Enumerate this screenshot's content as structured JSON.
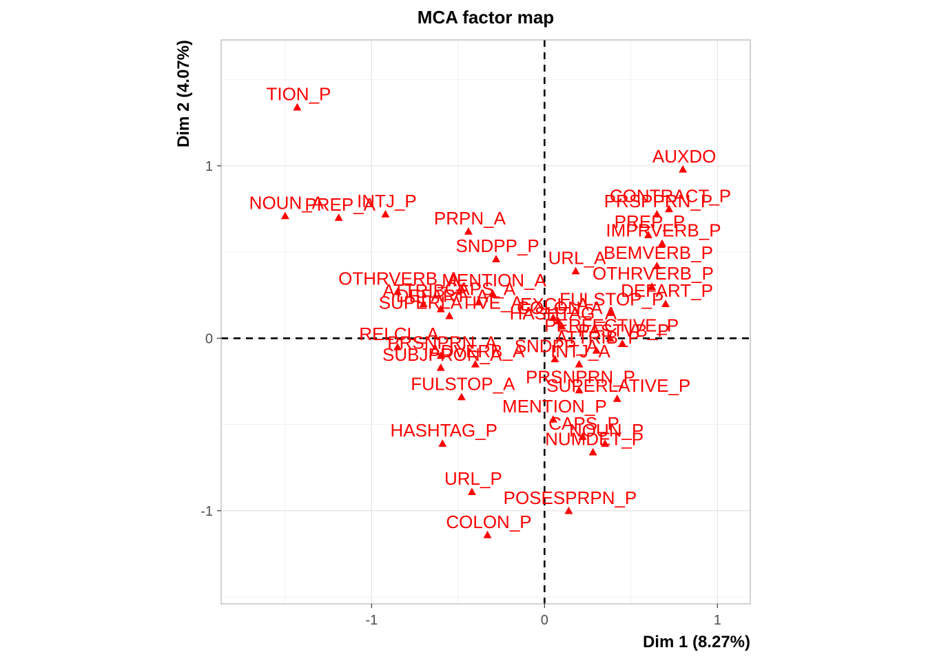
{
  "chart_data": {
    "type": "scatter",
    "title": "MCA factor map",
    "xlabel": "Dim 1 (8.27%)",
    "ylabel": "Dim 2 (4.07%)",
    "xlim": [
      -1.87,
      1.19
    ],
    "ylim": [
      -1.54,
      1.73
    ],
    "xticks": [
      -1,
      0,
      1
    ],
    "yticks": [
      -1,
      0,
      1
    ],
    "xtick_labels": [
      "-1",
      "0",
      "1"
    ],
    "ytick_labels": [
      "-1",
      "0",
      "1"
    ],
    "grid": true,
    "reference_lines": [
      {
        "axis": "x",
        "value": 0,
        "style": "dashed"
      },
      {
        "axis": "y",
        "value": 0,
        "style": "dashed"
      }
    ],
    "point_color": "#ff0000",
    "marker": "triangle",
    "points": [
      {
        "label": "AUXDO",
        "x": 0.8,
        "y": 0.98
      },
      {
        "label": "TION_P",
        "x": -1.43,
        "y": 1.34
      },
      {
        "label": "PREP_A",
        "x": -1.19,
        "y": 0.7
      },
      {
        "label": "NOUN_A",
        "x": -1.5,
        "y": 0.71
      },
      {
        "label": "INTJ_P",
        "x": -0.92,
        "y": 0.72
      },
      {
        "label": "PRPN_A",
        "x": -0.44,
        "y": 0.62
      },
      {
        "label": "SNDPP_P",
        "x": -0.28,
        "y": 0.46
      },
      {
        "label": "URL_A",
        "x": 0.18,
        "y": 0.39
      },
      {
        "label": "OTHRVERB_A",
        "x": -0.85,
        "y": 0.27
      },
      {
        "label": "MENTION_A",
        "x": -0.3,
        "y": 0.26
      },
      {
        "label": "CAPS_A",
        "x": -0.38,
        "y": 0.21
      },
      {
        "label": "ATTRIB_A",
        "x": -0.7,
        "y": 0.2
      },
      {
        "label": "DEFART_A",
        "x": -0.6,
        "y": 0.17
      },
      {
        "label": "SUPERLATIVE_A",
        "x": -0.55,
        "y": 0.13
      },
      {
        "label": "RELCL_A",
        "x": -0.85,
        "y": -0.05
      },
      {
        "label": "PRSNPRN_A",
        "x": -0.6,
        "y": -0.1
      },
      {
        "label": "ADVERB_A",
        "x": -0.4,
        "y": -0.15
      },
      {
        "label": "SUBJPRON_A",
        "x": -0.6,
        "y": -0.17
      },
      {
        "label": "FULSTOP_A",
        "x": -0.48,
        "y": -0.34
      },
      {
        "label": "HASHTAG_P",
        "x": -0.59,
        "y": -0.61
      },
      {
        "label": "URL_P",
        "x": -0.42,
        "y": -0.89
      },
      {
        "label": "COLON_P",
        "x": -0.33,
        "y": -1.14
      },
      {
        "label": "EXCL_A",
        "x": 0.05,
        "y": 0.12
      },
      {
        "label": "COLON_A",
        "x": 0.08,
        "y": 0.1
      },
      {
        "label": "HASHTAG_A",
        "x": 0.1,
        "y": 0.07
      },
      {
        "label": "FULSTOP_P",
        "x": 0.38,
        "y": 0.15
      },
      {
        "label": "PERFECTIVE_P",
        "x": 0.38,
        "y": 0.0
      },
      {
        "label": "PASTVB_P",
        "x": 0.45,
        "y": -0.03
      },
      {
        "label": "ATTRIB_P",
        "x": 0.3,
        "y": -0.07
      },
      {
        "label": "SNDPP_A",
        "x": 0.06,
        "y": -0.12
      },
      {
        "label": "INTJ_A",
        "x": 0.2,
        "y": -0.15
      },
      {
        "label": "PRSNPRN_P",
        "x": 0.2,
        "y": -0.3
      },
      {
        "label": "MENTION_P",
        "x": 0.05,
        "y": -0.47
      },
      {
        "label": "CAPS_P",
        "x": 0.22,
        "y": -0.57
      },
      {
        "label": "NOUN_P",
        "x": 0.35,
        "y": -0.61
      },
      {
        "label": "NUMDET_P",
        "x": 0.28,
        "y": -0.66
      },
      {
        "label": "POSESPRPN_P",
        "x": 0.14,
        "y": -1.0
      },
      {
        "label": "SUPERLATIVE_P",
        "x": 0.42,
        "y": -0.35
      },
      {
        "label": "CONTRACT_P",
        "x": 0.72,
        "y": 0.75
      },
      {
        "label": "PRSPPRN_P",
        "x": 0.65,
        "y": 0.72
      },
      {
        "label": "PREP_P",
        "x": 0.6,
        "y": 0.6
      },
      {
        "label": "IMPRVERB_P",
        "x": 0.68,
        "y": 0.55
      },
      {
        "label": "BEMVERB_P",
        "x": 0.65,
        "y": 0.42
      },
      {
        "label": "OTHRVERB_P",
        "x": 0.62,
        "y": 0.3
      },
      {
        "label": "DEFART_P",
        "x": 0.7,
        "y": 0.2
      }
    ]
  }
}
